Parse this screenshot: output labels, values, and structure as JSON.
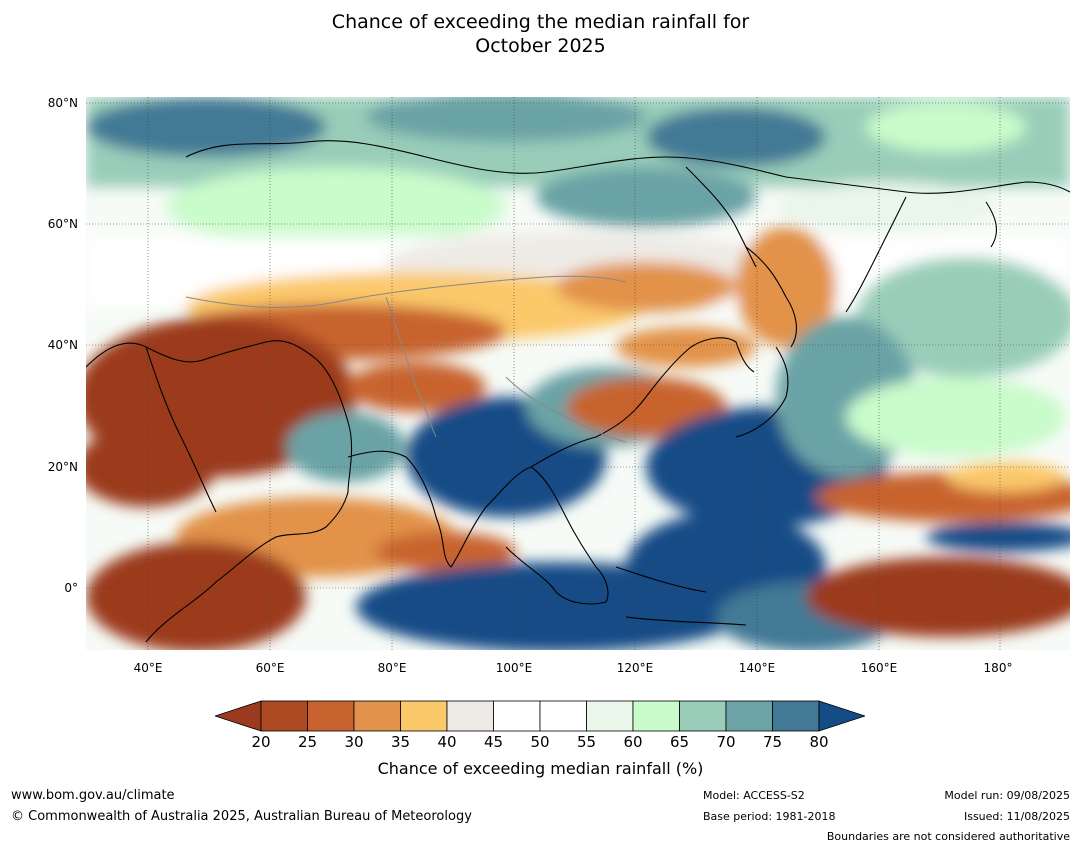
{
  "title_line1": "Chance of exceeding the median rainfall for",
  "title_line2": "October 2025",
  "map": {
    "lat_ticks": [
      "80°N",
      "60°N",
      "40°N",
      "20°N",
      "0°"
    ],
    "lon_ticks": [
      "40°E",
      "60°E",
      "80°E",
      "100°E",
      "120°E",
      "140°E",
      "160°E",
      "180°"
    ],
    "extent": {
      "lon": [
        30,
        191
      ],
      "lat": [
        -10,
        81
      ]
    }
  },
  "colorbar": {
    "ticks": [
      "20",
      "25",
      "30",
      "35",
      "40",
      "45",
      "50",
      "55",
      "60",
      "65",
      "70",
      "75",
      "80"
    ],
    "colors": [
      "#9b3a1e",
      "#ad4923",
      "#c8632f",
      "#e2924a",
      "#fbc86a",
      "#eeebe6",
      "#ffffff",
      "#ffffff",
      "#eaf6ea",
      "#c9fbcb",
      "#99cdb9",
      "#6ba3a6",
      "#427995",
      "#144c86"
    ],
    "label": "Chance of exceeding median rainfall (%)"
  },
  "footer": {
    "website": "www.bom.gov.au/climate",
    "copyright": "© Commonwealth of Australia 2025, Australian Bureau of Meteorology",
    "model": "Model: ACCESS-S2",
    "base_period": "Base period: 1981-2018",
    "model_run": "Model run: 09/08/2025",
    "issued": "Issued: 11/08/2025",
    "boundaries": "Boundaries are not considered authoritative"
  }
}
